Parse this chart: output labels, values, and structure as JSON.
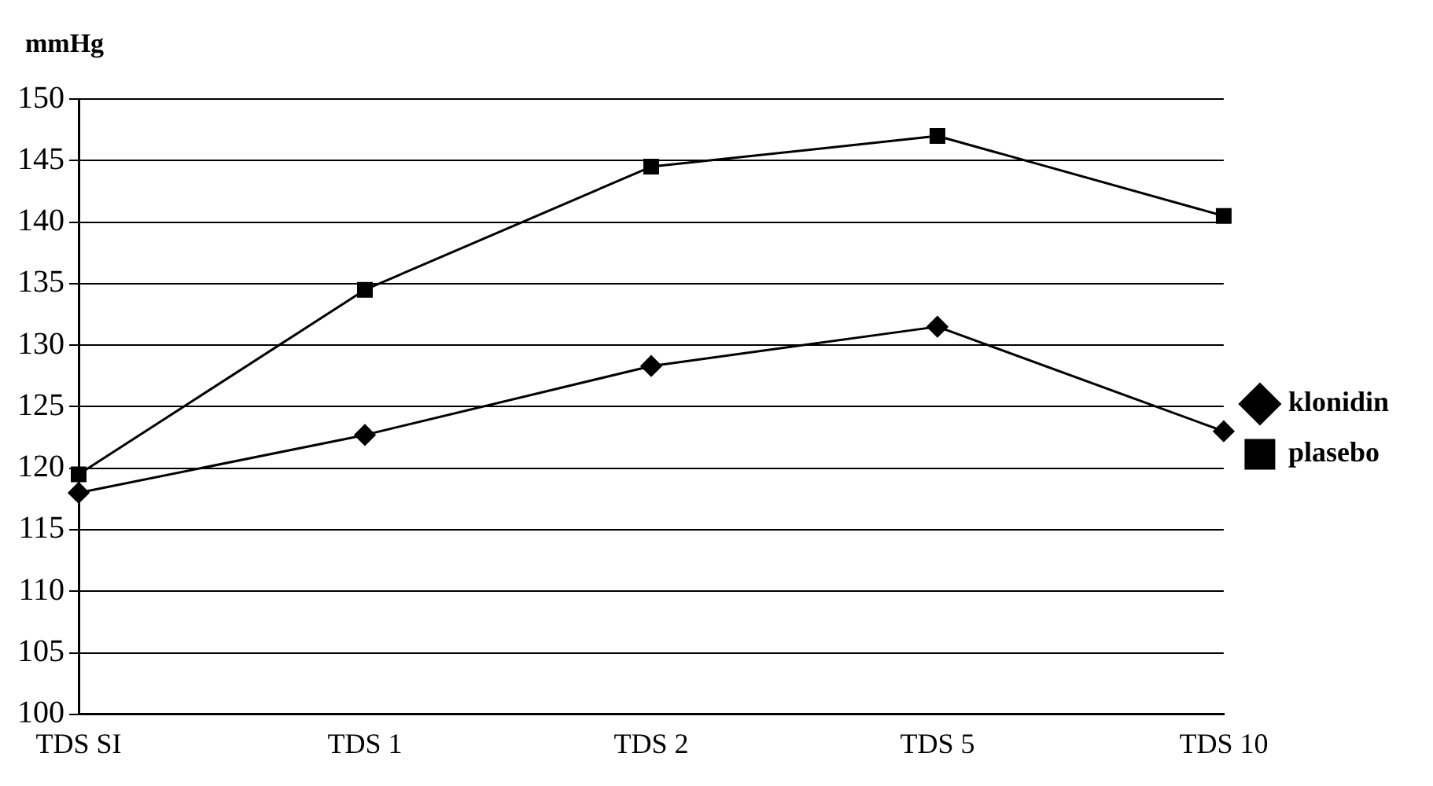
{
  "chart_data": {
    "type": "line",
    "ylabel": "mmHg",
    "categories": [
      "TDS SI",
      "TDS 1",
      "TDS 2",
      "TDS 5",
      "TDS 10"
    ],
    "series": [
      {
        "name": "klonidin",
        "color": "#000000",
        "marker": "diamond",
        "values": [
          118,
          122.7,
          128.3,
          131.5,
          123
        ]
      },
      {
        "name": "plasebo",
        "color": "#000000",
        "marker": "square",
        "values": [
          119.5,
          134.5,
          144.5,
          147,
          140.5
        ]
      }
    ],
    "ylim": [
      100,
      150
    ],
    "yticks": [
      100,
      105,
      110,
      115,
      120,
      125,
      130,
      135,
      140,
      145,
      150
    ],
    "grid": "y",
    "legend": "right",
    "line_style": "solid"
  }
}
